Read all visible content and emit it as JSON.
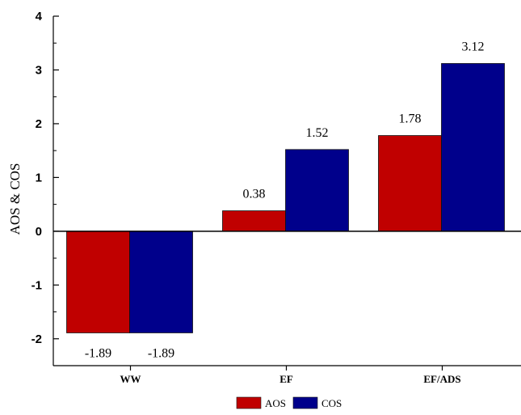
{
  "chart_data": {
    "type": "bar",
    "title": "",
    "xlabel": "",
    "ylabel": "AOS & COS",
    "categories": [
      "WW",
      "EF",
      "EF/ADS"
    ],
    "series": [
      {
        "name": "AOS",
        "values": [
          -1.89,
          0.38,
          1.78
        ],
        "color": "#c00000"
      },
      {
        "name": "COS",
        "values": [
          -1.89,
          1.52,
          3.12
        ],
        "color": "#00008b"
      }
    ],
    "ylim": [
      -2.5,
      4
    ],
    "yticks": [
      -2,
      -1,
      0,
      1,
      2,
      3,
      4
    ],
    "data_labels": true,
    "grid": false,
    "legend_position": "bottom-center"
  }
}
